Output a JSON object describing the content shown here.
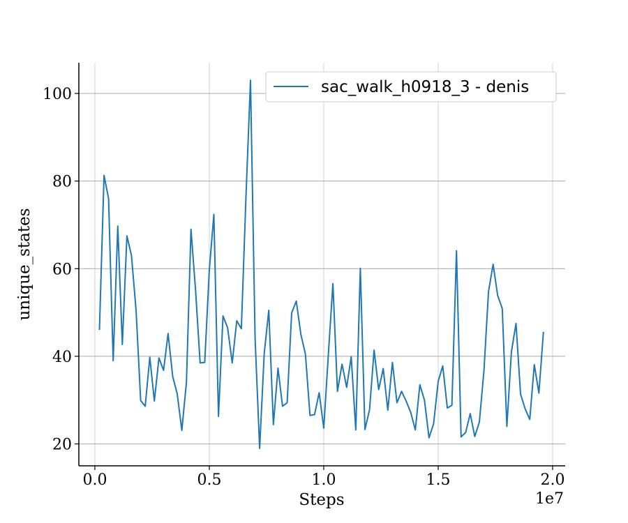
{
  "chart_data": {
    "type": "line",
    "xlabel": "Steps",
    "ylabel": "unique_states",
    "x_offset_label": "1e7",
    "xlim": [
      -0.07,
      2.055
    ],
    "ylim": [
      15,
      107
    ],
    "xticks": [
      0.0,
      0.5,
      1.0,
      1.5,
      2.0
    ],
    "xtick_labels": [
      "0.0",
      "0.5",
      "1.0",
      "1.5",
      "2.0"
    ],
    "yticks": [
      20,
      40,
      60,
      80,
      100
    ],
    "ytick_labels": [
      "20",
      "40",
      "60",
      "80",
      "100"
    ],
    "grid": true,
    "legend_position": "top-right",
    "series": [
      {
        "name": "sac_walk_h0918_3 - denis",
        "color": "#1f77b4",
        "x": [
          0.02,
          0.04,
          0.06,
          0.08,
          0.1,
          0.12,
          0.14,
          0.16,
          0.18,
          0.2,
          0.22,
          0.24,
          0.26,
          0.28,
          0.3,
          0.32,
          0.34,
          0.36,
          0.38,
          0.4,
          0.42,
          0.44,
          0.46,
          0.48,
          0.5,
          0.52,
          0.54,
          0.56,
          0.58,
          0.6,
          0.62,
          0.64,
          0.66,
          0.68,
          0.7,
          0.72,
          0.74,
          0.76,
          0.78,
          0.8,
          0.82,
          0.84,
          0.86,
          0.88,
          0.9,
          0.92,
          0.94,
          0.96,
          0.98,
          1.0,
          1.02,
          1.04,
          1.06,
          1.08,
          1.1,
          1.12,
          1.14,
          1.16,
          1.18,
          1.2,
          1.22,
          1.24,
          1.26,
          1.28,
          1.3,
          1.32,
          1.34,
          1.36,
          1.38,
          1.4,
          1.42,
          1.44,
          1.46,
          1.48,
          1.5,
          1.52,
          1.54,
          1.56,
          1.58,
          1.6,
          1.62,
          1.64,
          1.66,
          1.68,
          1.7,
          1.72,
          1.74,
          1.76,
          1.78,
          1.8,
          1.82,
          1.84,
          1.86,
          1.88,
          1.9,
          1.92,
          1.94,
          1.96
        ],
        "y": [
          46,
          81.3,
          76,
          39,
          69.7,
          42.7,
          67.5,
          63,
          50.5,
          29.9,
          28.6,
          39.8,
          29.8,
          39.6,
          36.8,
          45.2,
          35.4,
          31.4,
          23.1,
          34.1,
          69,
          55,
          38.5,
          38.6,
          59.8,
          72.4,
          26.3,
          49.2,
          46.5,
          38.5,
          48.1,
          46.3,
          76,
          103,
          44,
          19,
          40.7,
          50.5,
          24.4,
          37.3,
          28.6,
          29.4,
          49.9,
          52.6,
          45,
          40.5,
          26.5,
          26.7,
          31.7,
          23.6,
          40.2,
          56.6,
          32,
          38.2,
          32.9,
          39.9,
          23.2,
          60.1,
          23.3,
          27.8,
          41.4,
          32.4,
          37.2,
          27.7,
          38.6,
          29.4,
          32,
          29.8,
          27.2,
          23.2,
          33.5,
          30,
          21.4,
          24.6,
          34.3,
          37.8,
          28.2,
          28.8,
          64.1,
          21.6,
          22.6,
          26.9,
          21.7,
          25,
          36.8,
          54.8,
          61,
          53.9,
          50.9,
          24,
          41,
          47.5,
          31.4,
          28,
          25.6,
          38.1,
          31.6,
          45.6
        ]
      }
    ]
  }
}
